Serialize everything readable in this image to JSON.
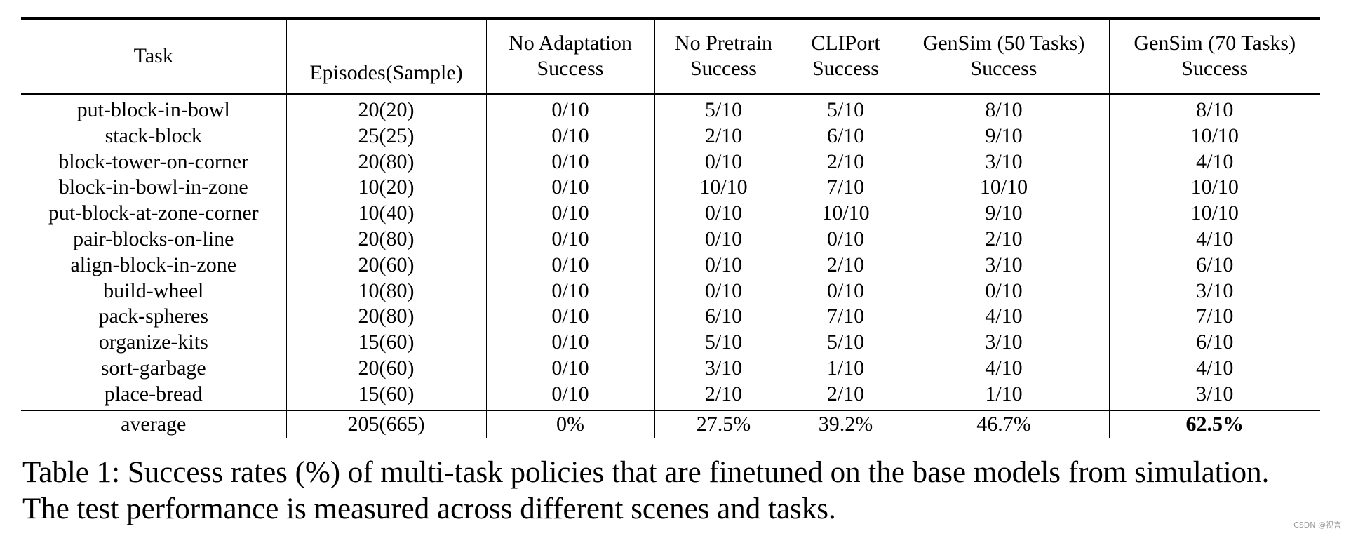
{
  "table": {
    "headers": [
      {
        "line1": "Task",
        "line2": ""
      },
      {
        "line1": "",
        "line2": "Episodes(Sample)"
      },
      {
        "line1": "No Adaptation",
        "line2": "Success"
      },
      {
        "line1": "No Pretrain",
        "line2": "Success"
      },
      {
        "line1": "CLIPort",
        "line2": "Success"
      },
      {
        "line1": "GenSim (50 Tasks)",
        "line2": "Success"
      },
      {
        "line1": "GenSim (70 Tasks)",
        "line2": "Success"
      }
    ],
    "rows": [
      [
        "put-block-in-bowl",
        "20(20)",
        "0/10",
        "5/10",
        "5/10",
        "8/10",
        "8/10"
      ],
      [
        "stack-block",
        "25(25)",
        "0/10",
        "2/10",
        "6/10",
        "9/10",
        "10/10"
      ],
      [
        "block-tower-on-corner",
        "20(80)",
        "0/10",
        "0/10",
        "2/10",
        "3/10",
        "4/10"
      ],
      [
        "block-in-bowl-in-zone",
        "10(20)",
        "0/10",
        "10/10",
        "7/10",
        "10/10",
        "10/10"
      ],
      [
        "put-block-at-zone-corner",
        "10(40)",
        "0/10",
        "0/10",
        "10/10",
        "9/10",
        "10/10"
      ],
      [
        "pair-blocks-on-line",
        "20(80)",
        "0/10",
        "0/10",
        "0/10",
        "2/10",
        "4/10"
      ],
      [
        "align-block-in-zone",
        "20(60)",
        "0/10",
        "0/10",
        "2/10",
        "3/10",
        "6/10"
      ],
      [
        "build-wheel",
        "10(80)",
        "0/10",
        "0/10",
        "0/10",
        "0/10",
        "3/10"
      ],
      [
        "pack-spheres",
        "20(80)",
        "0/10",
        "6/10",
        "7/10",
        "4/10",
        "7/10"
      ],
      [
        "organize-kits",
        "15(60)",
        "0/10",
        "5/10",
        "5/10",
        "3/10",
        "6/10"
      ],
      [
        "sort-garbage",
        "20(60)",
        "0/10",
        "3/10",
        "1/10",
        "4/10",
        "4/10"
      ],
      [
        "place-bread",
        "15(60)",
        "0/10",
        "2/10",
        "2/10",
        "1/10",
        "3/10"
      ]
    ],
    "average": [
      "average",
      "205(665)",
      "0%",
      "27.5%",
      "39.2%",
      "46.7%",
      "62.5%"
    ]
  },
  "caption": {
    "line1": "Table 1: Success rates (%) of multi-task policies that are finetuned on the base models from simulation.",
    "line2": "The test performance is measured across different scenes and tasks."
  },
  "watermark": "CSDN @视言"
}
